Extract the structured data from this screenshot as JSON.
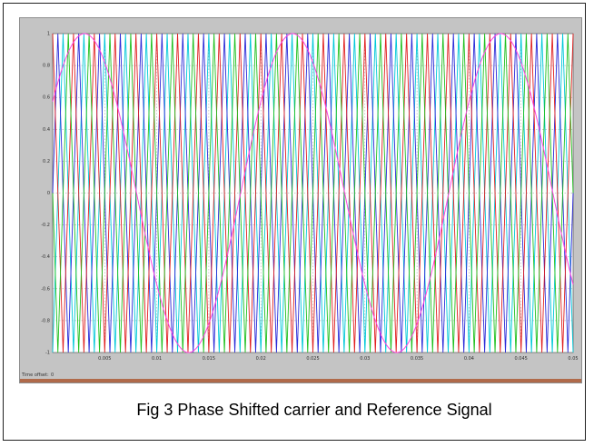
{
  "caption": "Fig 3 Phase Shifted carrier and Reference Signal",
  "scope": {
    "time_offset_label": "Time offset:",
    "time_offset_value": "0"
  },
  "chart_data": {
    "type": "line",
    "title": "",
    "xlabel": "",
    "ylabel": "",
    "xlim": [
      0,
      0.05
    ],
    "ylim": [
      -1,
      1
    ],
    "grid": true,
    "x_ticks": [
      "0.005",
      "0.01",
      "0.015",
      "0.02",
      "0.025",
      "0.03",
      "0.035",
      "0.04",
      "0.045",
      "0.05"
    ],
    "y_ticks": [
      "1",
      "0.8",
      "0.6",
      "0.4",
      "0.2",
      "0",
      "-0.2",
      "-0.4",
      "-0.6",
      "-0.8",
      "-1"
    ],
    "background": "#ffffff",
    "carriers": {
      "waveform": "triangle",
      "frequency_hz": 500,
      "amplitude": 1,
      "series": [
        {
          "color": "#00c8d8",
          "phase_shift_deg": 0
        },
        {
          "color": "#2a2ad8",
          "phase_shift_deg": 90
        },
        {
          "color": "#e02020",
          "phase_shift_deg": 180
        },
        {
          "color": "#20c020",
          "phase_shift_deg": 270
        }
      ]
    },
    "reference": {
      "waveform": "sine",
      "frequency_hz": 50,
      "amplitude": 1,
      "phase_deg": 35,
      "color": "#ff40e0"
    }
  }
}
